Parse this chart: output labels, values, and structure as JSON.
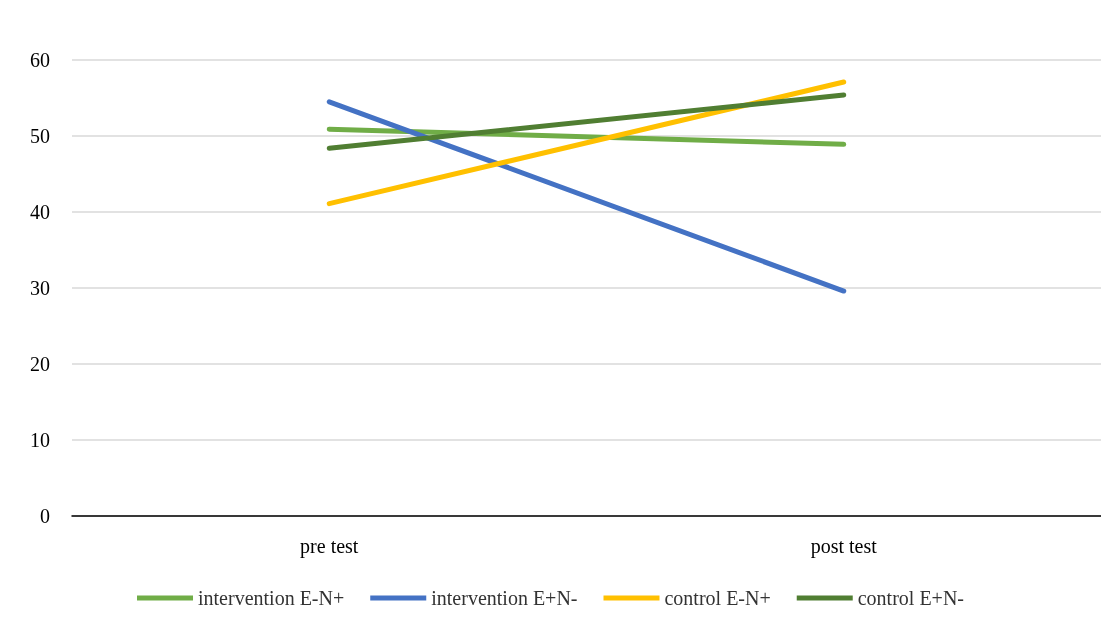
{
  "chart_data": {
    "type": "line",
    "categories": [
      "pre test",
      "post test"
    ],
    "series": [
      {
        "name": "intervention E-N+",
        "color": "#70ad47",
        "values": [
          50.9,
          48.9
        ]
      },
      {
        "name": "intervention E+N-",
        "color": "#4472c4",
        "values": [
          54.5,
          29.6
        ]
      },
      {
        "name": "control E-N+",
        "color": "#ffc000",
        "values": [
          41.1,
          57.1
        ]
      },
      {
        "name": "control E+N-",
        "color": "#507e32",
        "values": [
          48.4,
          55.4
        ]
      }
    ],
    "ylim": [
      0,
      60
    ],
    "yticks": [
      0,
      10,
      20,
      30,
      40,
      50,
      60
    ],
    "grid": "y",
    "legend": "bottom",
    "marker": "none",
    "line_style": "solid"
  }
}
